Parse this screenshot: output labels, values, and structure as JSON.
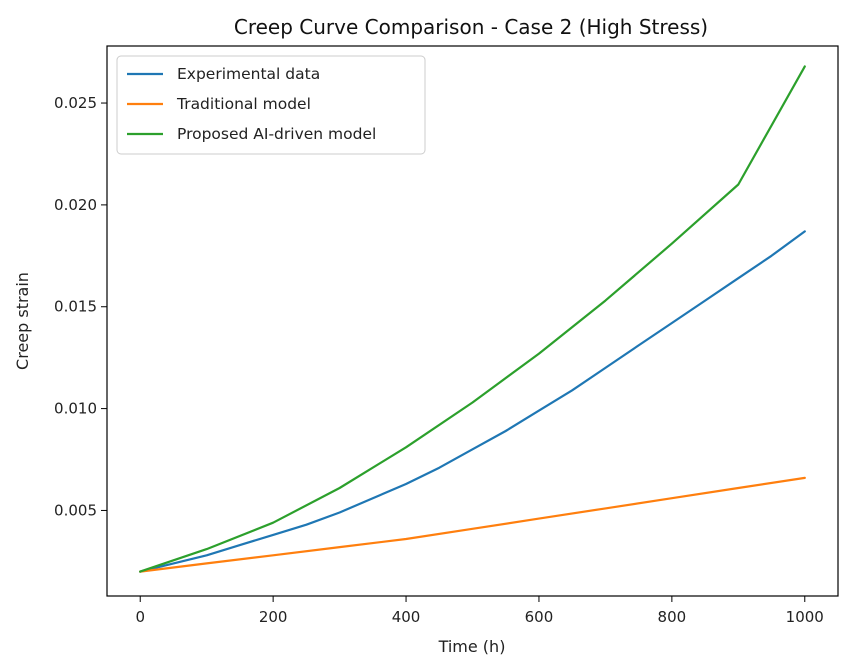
{
  "chart_data": {
    "type": "line",
    "title": "Creep Curve Comparison - Case 2 (High Stress)",
    "xlabel": "Time (h)",
    "ylabel": "Creep strain",
    "xlim": [
      -50,
      1050
    ],
    "ylim": [
      0.0008,
      0.0278
    ],
    "xticks": [
      0,
      200,
      400,
      600,
      800,
      1000
    ],
    "xtick_labels": [
      "0",
      "200",
      "400",
      "600",
      "800",
      "1000"
    ],
    "yticks": [
      0.005,
      0.01,
      0.015,
      0.02,
      0.025
    ],
    "ytick_labels": [
      "0.005",
      "0.010",
      "0.015",
      "0.020",
      "0.025"
    ],
    "grid": false,
    "legend_position": "top-left",
    "series": [
      {
        "name": "Experimental data",
        "color": "#1f77b4",
        "x": [
          0,
          50,
          100,
          150,
          200,
          250,
          300,
          350,
          400,
          450,
          500,
          550,
          600,
          650,
          700,
          750,
          800,
          850,
          900,
          950,
          1000
        ],
        "y": [
          0.002,
          0.0024,
          0.0028,
          0.0033,
          0.0038,
          0.0043,
          0.0049,
          0.0056,
          0.0063,
          0.0071,
          0.008,
          0.0089,
          0.0099,
          0.0109,
          0.012,
          0.0131,
          0.0142,
          0.0153,
          0.0164,
          0.0175,
          0.0187
        ]
      },
      {
        "name": "Traditional model",
        "color": "#ff7f0e",
        "x": [
          0,
          100,
          200,
          300,
          400,
          500,
          600,
          700,
          800,
          900,
          1000
        ],
        "y": [
          0.002,
          0.0024,
          0.0028,
          0.0032,
          0.0036,
          0.0041,
          0.0046,
          0.0051,
          0.0056,
          0.0061,
          0.0066
        ]
      },
      {
        "name": "Proposed AI-driven model",
        "color": "#2ca02c",
        "x": [
          0,
          100,
          200,
          300,
          400,
          500,
          600,
          700,
          800,
          900,
          1000
        ],
        "y": [
          0.002,
          0.0031,
          0.0044,
          0.0061,
          0.0081,
          0.0103,
          0.0127,
          0.0153,
          0.0181,
          0.021,
          0.0268
        ]
      }
    ]
  }
}
